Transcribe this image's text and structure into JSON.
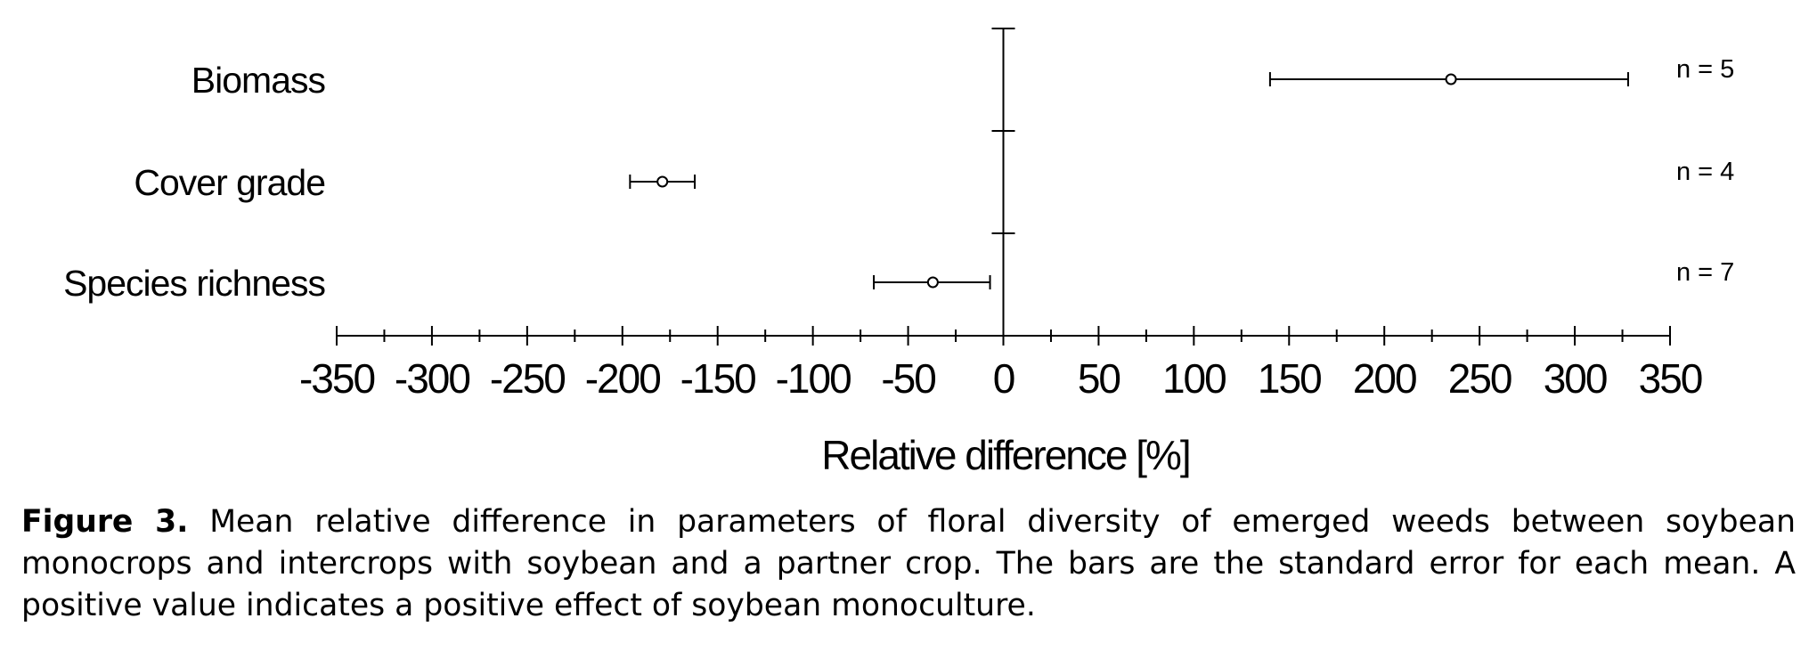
{
  "chart_data": {
    "type": "scatter",
    "subtype": "point-with-error-bars",
    "xlabel": "Relative difference [%]",
    "xlim": [
      -350,
      350
    ],
    "x_ticks": [
      "-350",
      "-300",
      "-250",
      "-200",
      "-150",
      "-100",
      "-50",
      "0",
      "50",
      "100",
      "150",
      "200",
      "250",
      "300",
      "350"
    ],
    "x_ticks_values": [
      -350,
      -300,
      -250,
      -200,
      -150,
      -100,
      -50,
      0,
      50,
      100,
      150,
      200,
      250,
      300,
      350
    ],
    "minor_tick_step": 25,
    "grid": false,
    "legend": "none",
    "categories": [
      "Biomass",
      "Cover grade",
      "Species richness"
    ],
    "series": [
      {
        "points": [
          {
            "category": "Biomass",
            "mean": 235,
            "low": 140,
            "high": 328,
            "n_label": "n = 5"
          },
          {
            "category": "Cover grade",
            "mean": -179,
            "low": -196,
            "high": -162,
            "n_label": "n = 4"
          },
          {
            "category": "Species richness",
            "mean": -37,
            "low": -68,
            "high": -7,
            "n_label": "n = 7"
          }
        ]
      }
    ]
  },
  "caption": {
    "label": "Figure 3.",
    "text": "Mean relative difference in parameters of floral diversity of emerged weeds between soybean monocrops and intercrops with soybean and a partner crop. The bars are the standard error for each mean. A positive value indicates a positive effect of soybean monoculture."
  },
  "colors": {
    "ink": "#000000",
    "background": "#ffffff"
  }
}
